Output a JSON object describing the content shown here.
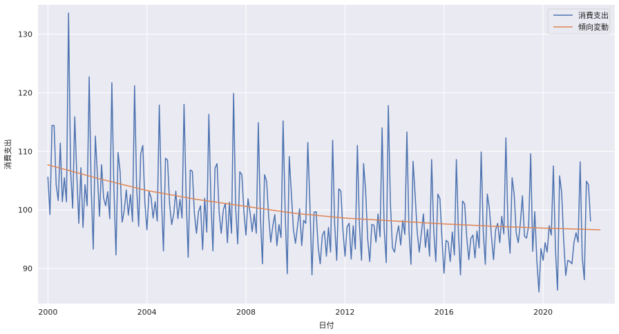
{
  "chart_data": {
    "type": "line",
    "xlabel": "日付",
    "ylabel": "消費支出",
    "xlim": [
      1999.6,
      2022.9
    ],
    "ylim": [
      84,
      135
    ],
    "x_ticks": [
      2000,
      2004,
      2008,
      2012,
      2016,
      2020
    ],
    "x_tick_labels": [
      "2000",
      "2004",
      "2008",
      "2012",
      "2016",
      "2020"
    ],
    "y_ticks": [
      90,
      100,
      110,
      120,
      130
    ],
    "y_tick_labels": [
      "90",
      "100",
      "110",
      "120",
      "130"
    ],
    "grid": true,
    "legend_position": "top-right",
    "x_start": 2000.0,
    "x_step": 0.0833333,
    "series": [
      {
        "name": "消費支出",
        "color": "#4c72b0",
        "values": [
          105.6,
          99.2,
          114.4,
          114.4,
          104.3,
          101.6,
          111.4,
          101.4,
          105.5,
          101.4,
          133.6,
          106.7,
          100.3,
          115.9,
          106.1,
          97.7,
          107.2,
          97.0,
          104.3,
          100.7,
          122.7,
          103.8,
          93.3,
          112.6,
          106.0,
          98.9,
          107.7,
          102.0,
          100.7,
          103.1,
          98.5,
          121.7,
          103.6,
          92.3,
          109.8,
          106.5,
          97.9,
          99.9,
          103.4,
          99.1,
          102.6,
          98.0,
          121.2,
          103.7,
          97.2,
          109.6,
          111.0,
          101.3,
          96.6,
          103.1,
          102.1,
          98.6,
          101.4,
          98.1,
          117.9,
          102.2,
          93.0,
          108.8,
          108.5,
          101.0,
          97.5,
          99.3,
          103.2,
          98.5,
          101.8,
          98.6,
          118.0,
          102.4,
          91.9,
          106.8,
          106.6,
          99.4,
          96.0,
          99.7,
          100.7,
          93.2,
          102.0,
          96.2,
          116.3,
          101.6,
          93.0,
          107.1,
          107.9,
          99.6,
          96.0,
          100.0,
          101.1,
          94.4,
          101.3,
          96.0,
          119.9,
          100.4,
          94.2,
          106.5,
          106.0,
          99.8,
          95.7,
          101.9,
          99.5,
          96.3,
          99.3,
          96.0,
          114.9,
          99.0,
          90.8,
          106.0,
          104.9,
          98.9,
          94.5,
          97.3,
          99.2,
          93.9,
          97.5,
          95.3,
          115.2,
          99.4,
          89.1,
          109.1,
          102.9,
          96.7,
          94.3,
          97.3,
          100.2,
          93.9,
          98.2,
          97.7,
          111.5,
          100.9,
          88.9,
          99.6,
          99.7,
          93.6,
          90.8,
          95.6,
          96.4,
          92.1,
          97.0,
          92.8,
          111.9,
          97.6,
          91.4,
          103.6,
          103.2,
          96.5,
          92.1,
          97.1,
          97.7,
          91.6,
          97.3,
          93.3,
          111.0,
          97.3,
          91.4,
          107.9,
          103.4,
          95.1,
          91.2,
          97.5,
          97.4,
          94.5,
          99.3,
          95.4,
          114.0,
          96.8,
          91.0,
          117.8,
          101.1,
          93.5,
          92.8,
          95.5,
          97.3,
          94.0,
          98.2,
          95.8,
          113.3,
          96.5,
          90.7,
          108.3,
          102.6,
          96.2,
          92.8,
          96.0,
          99.3,
          93.6,
          96.7,
          92.1,
          108.6,
          96.5,
          91.2,
          102.7,
          101.9,
          95.2,
          89.2,
          94.8,
          94.5,
          91.2,
          96.2,
          92.3,
          108.6,
          96.0,
          88.9,
          101.5,
          101.0,
          95.3,
          91.5,
          95.1,
          95.7,
          91.8,
          96.4,
          93.5,
          109.9,
          96.3,
          90.7,
          102.7,
          100.2,
          95.4,
          91.5,
          96.6,
          97.7,
          94.4,
          98.9,
          95.9,
          112.3,
          97.1,
          92.6,
          105.5,
          102.6,
          96.1,
          94.4,
          97.7,
          102.4,
          95.5,
          95.2,
          97.3,
          109.6,
          92.9,
          99.7,
          91.3,
          86.0,
          93.4,
          91.4,
          94.4,
          92.8,
          97.3,
          95.7,
          107.5,
          93.3,
          86.3,
          105.8,
          103.0,
          94.9,
          88.8,
          91.4,
          91.2,
          90.8,
          94.5,
          96.1,
          94.5,
          108.2,
          91.8,
          88.1,
          104.9,
          104.3,
          98.1
        ]
      },
      {
        "name": "傾向変動",
        "color": "#dd8452",
        "x": [
          2000,
          2002,
          2004,
          2006,
          2008,
          2010,
          2012,
          2014,
          2016,
          2018,
          2020,
          2022.3
        ],
        "values": [
          107.7,
          105.4,
          103.3,
          101.8,
          100.6,
          99.4,
          98.6,
          98.1,
          97.6,
          97.2,
          96.9,
          96.6
        ]
      }
    ]
  }
}
